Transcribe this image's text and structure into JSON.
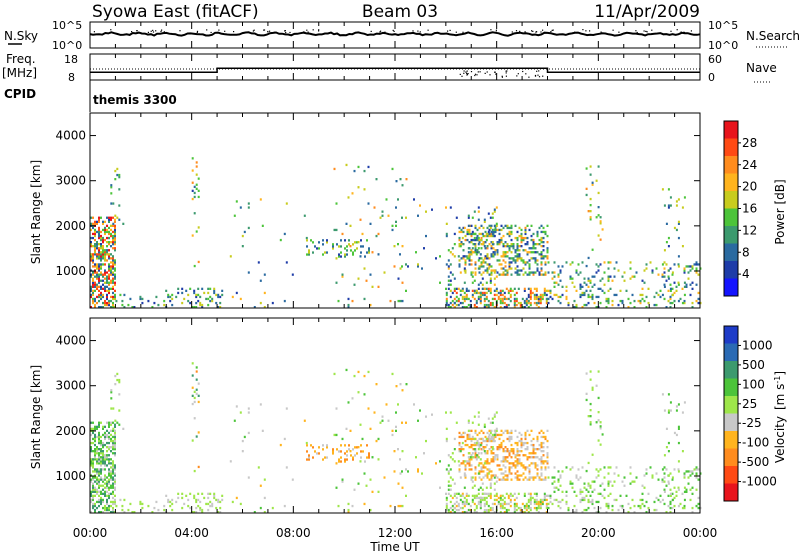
{
  "header": {
    "radar": "Syowa East (fitACF)",
    "beam": "Beam 03",
    "date": "11/Apr/2009"
  },
  "noise_panel": {
    "left_label": "N.Sky",
    "right_label": "N.Search",
    "left_ticks": [
      "10^5",
      "10^0"
    ],
    "right_ticks": [
      "10^5",
      "10^0"
    ]
  },
  "freq_panel": {
    "left_label_line1": "Freq.",
    "left_label_line2": "[MHz]",
    "right_label": "Nave",
    "left_ticks": [
      "18",
      "8"
    ],
    "right_ticks": [
      "60",
      "0"
    ],
    "freq_steps": [
      {
        "start": 0,
        "end": 5,
        "mhz": 11.0
      },
      {
        "start": 5,
        "end": 18,
        "mhz": 12.5
      },
      {
        "start": 18,
        "end": 24,
        "mhz": 11.0
      }
    ]
  },
  "cpid": {
    "label": "CPID",
    "program": "themis 3300"
  },
  "power_panel": {
    "ylabel": "Slant Range [km]",
    "cbar_label": "Power [dB]",
    "cbar_ticks": [
      "28",
      "24",
      "20",
      "16",
      "12",
      "8",
      "4"
    ],
    "cbar_colors": [
      "#e8141c",
      "#ff4a14",
      "#ff8c1e",
      "#ffb41e",
      "#c8cc1e",
      "#4cc43a",
      "#3c9a6e",
      "#2a6aa0",
      "#1e3ca8",
      "#1414ff"
    ]
  },
  "velocity_panel": {
    "ylabel": "Slant Range [km]",
    "cbar_label_main": "Velocity",
    "cbar_label_unit": "[m s",
    "cbar_label_sup": "-1",
    "cbar_label_end": "]",
    "cbar_ticks": [
      "1000",
      "500",
      "100",
      "25",
      "-25",
      "-100",
      "-500",
      "-1000"
    ],
    "cbar_colors": [
      "#1e3cc8",
      "#2a6ab4",
      "#3c9a6e",
      "#4cc43a",
      "#9ee64a",
      "#c8c8c8",
      "#ffb41e",
      "#ff8c1e",
      "#ff4a14",
      "#e8141c"
    ]
  },
  "y_axis_ticks": [
    "4000",
    "3000",
    "2000",
    "1000"
  ],
  "x_axis": {
    "label": "Time UT",
    "ticks": [
      "00:00",
      "04:00",
      "08:00",
      "12:00",
      "16:00",
      "20:00",
      "00:00"
    ]
  },
  "chart_data": {
    "type": "heatmap",
    "title": "Syowa East (fitACF) Beam 03 11/Apr/2009",
    "xlabel": "Time UT",
    "ylabel": "Slant Range [km]",
    "xlim": [
      0,
      24
    ],
    "ylim": [
      180,
      4500
    ],
    "power_range_db": [
      0,
      30
    ],
    "velocity_range": [
      -1000,
      1000
    ],
    "echo_regions": [
      {
        "t0": 0.0,
        "t1": 1.0,
        "r0": 180,
        "r1": 2200,
        "density": 0.55,
        "power": [
          4,
          30
        ],
        "vel": [
          -200,
          600
        ]
      },
      {
        "t0": 0.8,
        "t1": 1.3,
        "r0": 1800,
        "r1": 3400,
        "density": 0.05,
        "power": [
          6,
          20
        ],
        "vel": [
          -100,
          300
        ]
      },
      {
        "t0": 1.0,
        "t1": 2.8,
        "r0": 180,
        "r1": 500,
        "density": 0.08,
        "power": [
          4,
          16
        ],
        "vel": [
          -100,
          200
        ]
      },
      {
        "t0": 2.8,
        "t1": 5.2,
        "r0": 180,
        "r1": 600,
        "density": 0.2,
        "power": [
          4,
          18
        ],
        "vel": [
          -200,
          200
        ]
      },
      {
        "t0": 4.0,
        "t1": 4.3,
        "r0": 1000,
        "r1": 3500,
        "density": 0.06,
        "power": [
          4,
          24
        ],
        "vel": [
          -500,
          500
        ]
      },
      {
        "t0": 5.5,
        "t1": 8.5,
        "r0": 180,
        "r1": 2600,
        "density": 0.015,
        "power": [
          4,
          20
        ],
        "vel": [
          -300,
          300
        ]
      },
      {
        "t0": 8.5,
        "t1": 11.0,
        "r0": 1300,
        "r1": 1700,
        "density": 0.25,
        "power": [
          4,
          18
        ],
        "vel": [
          -600,
          -50
        ]
      },
      {
        "t0": 9.5,
        "t1": 12.5,
        "r0": 180,
        "r1": 3400,
        "density": 0.02,
        "power": [
          4,
          24
        ],
        "vel": [
          -400,
          400
        ]
      },
      {
        "t0": 12.0,
        "t1": 14.0,
        "r0": 180,
        "r1": 2600,
        "density": 0.015,
        "power": [
          4,
          20
        ],
        "vel": [
          -300,
          300
        ]
      },
      {
        "t0": 14.0,
        "t1": 18.0,
        "r0": 180,
        "r1": 600,
        "density": 0.45,
        "power": [
          4,
          26
        ],
        "vel": [
          -300,
          300
        ]
      },
      {
        "t0": 14.5,
        "t1": 18.0,
        "r0": 900,
        "r1": 2000,
        "density": 0.35,
        "power": [
          4,
          22
        ],
        "vel": [
          -500,
          -50
        ]
      },
      {
        "t0": 14.0,
        "t1": 16.0,
        "r0": 180,
        "r1": 2400,
        "density": 0.1,
        "power": [
          4,
          20
        ],
        "vel": [
          -200,
          300
        ]
      },
      {
        "t0": 18.0,
        "t1": 24.0,
        "r0": 180,
        "r1": 1200,
        "density": 0.15,
        "power": [
          4,
          20
        ],
        "vel": [
          -200,
          400
        ]
      },
      {
        "t0": 19.5,
        "t1": 20.2,
        "r0": 1000,
        "r1": 3400,
        "density": 0.04,
        "power": [
          6,
          22
        ],
        "vel": [
          -100,
          300
        ]
      },
      {
        "t0": 22.5,
        "t1": 23.5,
        "r0": 180,
        "r1": 2800,
        "density": 0.04,
        "power": [
          4,
          18
        ],
        "vel": [
          -200,
          400
        ]
      }
    ]
  }
}
